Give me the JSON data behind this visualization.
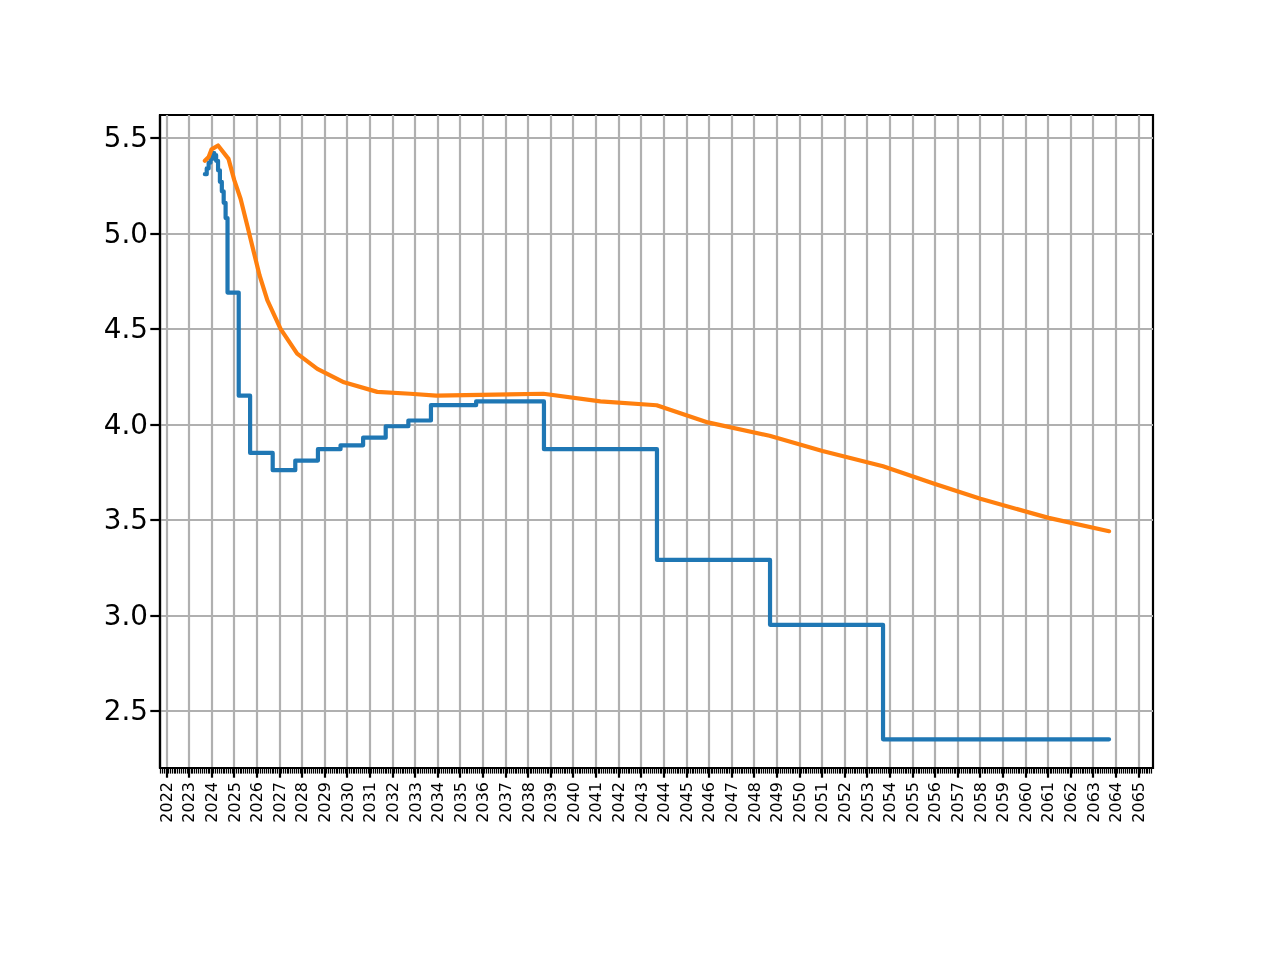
{
  "chart_data": {
    "type": "line",
    "series": [
      {
        "type": "step",
        "color": "#1f77b4",
        "x": [
          "2023-09-15",
          "2023-10-15",
          "2023-11-15",
          "2023-12-15",
          "2024-01-15",
          "2024-02-15",
          "2024-03-15",
          "2024-04-15",
          "2024-05-15",
          "2024-06-15",
          "2024-07-15",
          "2024-08-15",
          "2024-09-15",
          "2025-03-15",
          "2025-09-15",
          "2026-09-15",
          "2027-09-15",
          "2028-09-15",
          "2029-09-15",
          "2030-09-15",
          "2031-09-15",
          "2032-09-15",
          "2033-09-15",
          "2035-09-15",
          "2038-09-15",
          "2043-09-15",
          "2048-09-15",
          "2053-09-15",
          "2063-09-15"
        ],
        "values": [
          5.31,
          5.34,
          5.37,
          5.39,
          5.42,
          5.41,
          5.38,
          5.33,
          5.27,
          5.22,
          5.16,
          5.08,
          4.69,
          4.15,
          3.85,
          3.76,
          3.81,
          3.87,
          3.89,
          3.93,
          3.99,
          4.02,
          4.1,
          4.12,
          3.87,
          3.29,
          2.95,
          2.35,
          2.35
        ]
      },
      {
        "color": "#ff7f0e",
        "x": [
          "2023-09-15",
          "2023-11-15",
          "2024-01-01",
          "2024-04-15",
          "2024-10-01",
          "2025-01-01",
          "2025-04-15",
          "2025-08-01",
          "2025-11-15",
          "2026-02-15",
          "2026-06-20",
          "2027-01-20",
          "2027-10-15",
          "2028-09-05",
          "2029-11-10",
          "2031-05-01",
          "2032-10-15",
          "2033-12-10",
          "2038-09-05",
          "2041-03-15",
          "2043-09-10",
          "2045-12-15",
          "2048-09-07",
          "2051-01-10",
          "2053-09-15",
          "2055-12-10",
          "2058-01-05",
          "2061-01-10",
          "2063-09-15"
        ],
        "values": [
          5.38,
          5.4,
          5.44,
          5.46,
          5.39,
          5.28,
          5.18,
          5.04,
          4.9,
          4.78,
          4.65,
          4.5,
          4.37,
          4.29,
          4.22,
          4.17,
          4.16,
          4.15,
          4.16,
          4.12,
          4.1,
          4.01,
          3.94,
          3.86,
          3.78,
          3.69,
          3.61,
          3.51,
          3.44
        ]
      }
    ],
    "xlim": [
      "2021-09-20",
      "2065-08-25"
    ],
    "xticks": [
      "2022",
      "2023",
      "2024",
      "2025",
      "2026",
      "2027",
      "2028",
      "2029",
      "2030",
      "2031",
      "2032",
      "2033",
      "2034",
      "2035",
      "2036",
      "2037",
      "2038",
      "2039",
      "2040",
      "2041",
      "2042",
      "2043",
      "2044",
      "2045",
      "2046",
      "2047",
      "2048",
      "2049",
      "2050",
      "2051",
      "2052",
      "2053",
      "2054",
      "2055",
      "2056",
      "2057",
      "2058",
      "2059",
      "2060",
      "2061",
      "2062",
      "2063",
      "2064",
      "2065"
    ],
    "ylim": [
      2.2,
      5.62
    ],
    "yticks": [
      2.5,
      {
        "value": 3,
        "label": "3.0"
      },
      3.5,
      {
        "value": 4,
        "label": "4.0"
      },
      4.5,
      {
        "value": 5,
        "label": "5.0"
      },
      5.5
    ],
    "grid": true
  }
}
